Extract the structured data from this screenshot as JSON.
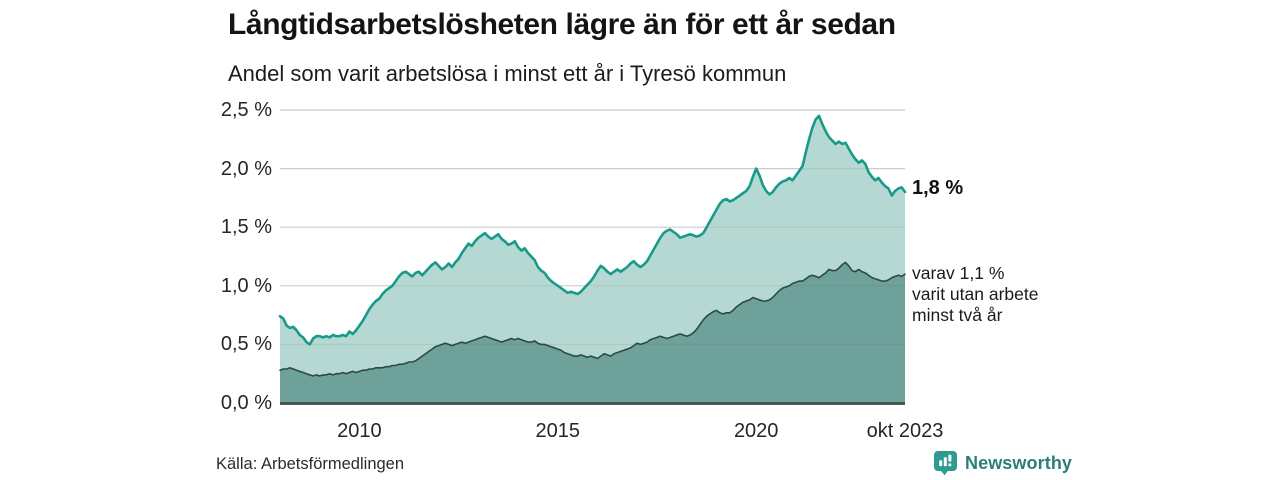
{
  "header": {
    "title": "Långtidsarbetslösheten lägre än för ett år sedan",
    "subtitle": "Andel som varit arbetslösa i minst ett år i Tyresö kommun"
  },
  "chart_data": {
    "type": "area",
    "title": "Långtidsarbetslösheten lägre än för ett år sedan",
    "subtitle": "Andel som varit arbetslösa i minst ett år i Tyresö kommun",
    "unit": "%",
    "x_start": 2008,
    "points_per_year": 12,
    "ylim": [
      0,
      2.5
    ],
    "grid_color": "#dcdcdc",
    "baseline_color": "#3d4e4a",
    "y_ticks": [
      {
        "v": 2.5,
        "label": "2,5 %"
      },
      {
        "v": 2.0,
        "label": "2,0 %"
      },
      {
        "v": 1.5,
        "label": "1,5 %"
      },
      {
        "v": 1.0,
        "label": "1,0 %"
      },
      {
        "v": 0.5,
        "label": "0,5 %"
      },
      {
        "v": 0.0,
        "label": "0,0 %"
      }
    ],
    "x_ticks": [
      {
        "t": 2010,
        "label": "2010"
      },
      {
        "t": 2015,
        "label": "2015"
      },
      {
        "t": 2020,
        "label": "2020"
      },
      {
        "t": 2023.75,
        "label": "okt 2023"
      }
    ],
    "series": [
      {
        "name": "Andel som varit arbetslösa i minst ett år",
        "line_color": "#189a8b",
        "fill": "#b5d9d2",
        "end_value_label": "1,8 %",
        "values": [
          0.74,
          0.72,
          0.66,
          0.64,
          0.65,
          0.62,
          0.58,
          0.56,
          0.52,
          0.5,
          0.55,
          0.57,
          0.57,
          0.56,
          0.57,
          0.56,
          0.58,
          0.57,
          0.57,
          0.58,
          0.57,
          0.61,
          0.59,
          0.62,
          0.66,
          0.7,
          0.75,
          0.8,
          0.84,
          0.87,
          0.89,
          0.93,
          0.96,
          0.98,
          1.0,
          1.04,
          1.08,
          1.11,
          1.12,
          1.1,
          1.08,
          1.11,
          1.12,
          1.09,
          1.12,
          1.15,
          1.18,
          1.2,
          1.17,
          1.14,
          1.16,
          1.19,
          1.16,
          1.2,
          1.23,
          1.28,
          1.32,
          1.36,
          1.34,
          1.38,
          1.41,
          1.43,
          1.45,
          1.42,
          1.4,
          1.42,
          1.44,
          1.4,
          1.38,
          1.35,
          1.36,
          1.38,
          1.33,
          1.3,
          1.32,
          1.28,
          1.25,
          1.22,
          1.16,
          1.13,
          1.11,
          1.07,
          1.04,
          1.02,
          1.0,
          0.98,
          0.96,
          0.94,
          0.95,
          0.94,
          0.93,
          0.95,
          0.98,
          1.01,
          1.04,
          1.08,
          1.13,
          1.17,
          1.15,
          1.12,
          1.1,
          1.12,
          1.14,
          1.12,
          1.14,
          1.16,
          1.19,
          1.21,
          1.18,
          1.16,
          1.18,
          1.21,
          1.26,
          1.31,
          1.36,
          1.41,
          1.45,
          1.47,
          1.48,
          1.46,
          1.44,
          1.41,
          1.42,
          1.43,
          1.44,
          1.43,
          1.42,
          1.43,
          1.45,
          1.5,
          1.55,
          1.6,
          1.65,
          1.7,
          1.73,
          1.74,
          1.72,
          1.73,
          1.75,
          1.77,
          1.79,
          1.81,
          1.85,
          1.93,
          2.0,
          1.94,
          1.86,
          1.81,
          1.78,
          1.8,
          1.84,
          1.87,
          1.89,
          1.9,
          1.92,
          1.9,
          1.94,
          1.98,
          2.02,
          2.14,
          2.25,
          2.35,
          2.42,
          2.45,
          2.38,
          2.32,
          2.27,
          2.24,
          2.21,
          2.23,
          2.21,
          2.22,
          2.17,
          2.12,
          2.08,
          2.05,
          2.07,
          2.04,
          1.97,
          1.93,
          1.9,
          1.92,
          1.88,
          1.85,
          1.83,
          1.77,
          1.81,
          1.83,
          1.84,
          1.8
        ]
      },
      {
        "name": "varav utan arbete minst två år",
        "line_color": "#2c4a45",
        "fill": "#6fa19b",
        "end_value_label": "1,1 %",
        "values": [
          0.28,
          0.29,
          0.29,
          0.3,
          0.29,
          0.28,
          0.27,
          0.26,
          0.25,
          0.24,
          0.23,
          0.24,
          0.23,
          0.24,
          0.24,
          0.25,
          0.24,
          0.25,
          0.25,
          0.26,
          0.25,
          0.26,
          0.27,
          0.26,
          0.27,
          0.28,
          0.28,
          0.29,
          0.29,
          0.3,
          0.3,
          0.3,
          0.31,
          0.31,
          0.32,
          0.32,
          0.33,
          0.33,
          0.34,
          0.35,
          0.35,
          0.36,
          0.38,
          0.4,
          0.42,
          0.44,
          0.46,
          0.48,
          0.49,
          0.5,
          0.51,
          0.5,
          0.49,
          0.5,
          0.51,
          0.52,
          0.51,
          0.52,
          0.53,
          0.54,
          0.55,
          0.56,
          0.57,
          0.56,
          0.55,
          0.54,
          0.53,
          0.52,
          0.53,
          0.54,
          0.55,
          0.54,
          0.55,
          0.54,
          0.53,
          0.52,
          0.52,
          0.53,
          0.51,
          0.5,
          0.5,
          0.49,
          0.48,
          0.47,
          0.46,
          0.45,
          0.43,
          0.42,
          0.41,
          0.4,
          0.4,
          0.41,
          0.4,
          0.39,
          0.4,
          0.39,
          0.38,
          0.4,
          0.42,
          0.41,
          0.4,
          0.42,
          0.43,
          0.44,
          0.45,
          0.46,
          0.47,
          0.49,
          0.51,
          0.5,
          0.51,
          0.52,
          0.54,
          0.55,
          0.56,
          0.57,
          0.56,
          0.55,
          0.56,
          0.57,
          0.58,
          0.59,
          0.58,
          0.57,
          0.58,
          0.6,
          0.63,
          0.67,
          0.71,
          0.74,
          0.76,
          0.78,
          0.79,
          0.77,
          0.76,
          0.77,
          0.77,
          0.79,
          0.82,
          0.84,
          0.86,
          0.87,
          0.88,
          0.9,
          0.89,
          0.88,
          0.87,
          0.87,
          0.88,
          0.9,
          0.93,
          0.96,
          0.98,
          0.99,
          1.0,
          1.02,
          1.03,
          1.04,
          1.04,
          1.06,
          1.08,
          1.09,
          1.08,
          1.07,
          1.09,
          1.11,
          1.14,
          1.13,
          1.13,
          1.15,
          1.18,
          1.2,
          1.17,
          1.13,
          1.12,
          1.14,
          1.12,
          1.11,
          1.09,
          1.07,
          1.06,
          1.05,
          1.04,
          1.04,
          1.05,
          1.07,
          1.08,
          1.09,
          1.08,
          1.1
        ]
      }
    ],
    "annotations": {
      "top_value": "1,8 %",
      "bottom_lines": [
        "varav 1,1 %",
        "varit utan arbete",
        "minst två år"
      ]
    }
  },
  "footer": {
    "source": "Källa: Arbetsförmedlingen",
    "brand": "Newsworthy",
    "brand_color": "#2c7f77",
    "icon_color": "#2f9a8f"
  }
}
